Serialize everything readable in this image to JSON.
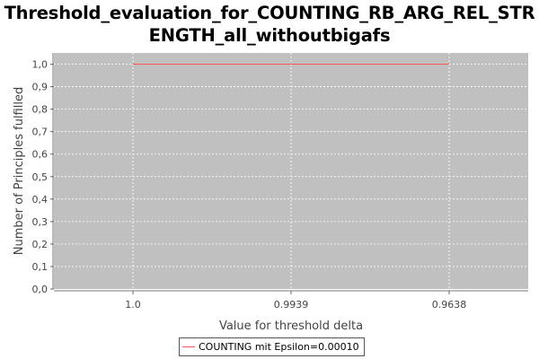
{
  "chart_data": {
    "type": "line",
    "title_lines": [
      "Threshold_evaluation_for_COUNTING_RB_ARG_REL_STR",
      "ENGTH_all_withoutbigafs"
    ],
    "xlabel": "Value for threshold delta",
    "ylabel": "Number of Principles fulfilled",
    "categories": [
      "1.0",
      "0.9939",
      "0.9638"
    ],
    "series": [
      {
        "name": "COUNTING mit Epsilon=0.00010",
        "values": [
          1.0,
          1.0,
          1.0
        ],
        "color": "#ff5555"
      }
    ],
    "ylim": [
      0.0,
      1.05
    ],
    "yticks": [
      0.0,
      0.1,
      0.2,
      0.3,
      0.4,
      0.5,
      0.6,
      0.7,
      0.8,
      0.9,
      1.0
    ],
    "ytick_labels": [
      "0,0",
      "0,1",
      "0,2",
      "0,3",
      "0,4",
      "0,5",
      "0,6",
      "0,7",
      "0,8",
      "0,9",
      "1,0"
    ],
    "grid": true,
    "plot_background": "#c0c0c0",
    "gridline_color": "#ffffff",
    "legend_position": "bottom"
  }
}
